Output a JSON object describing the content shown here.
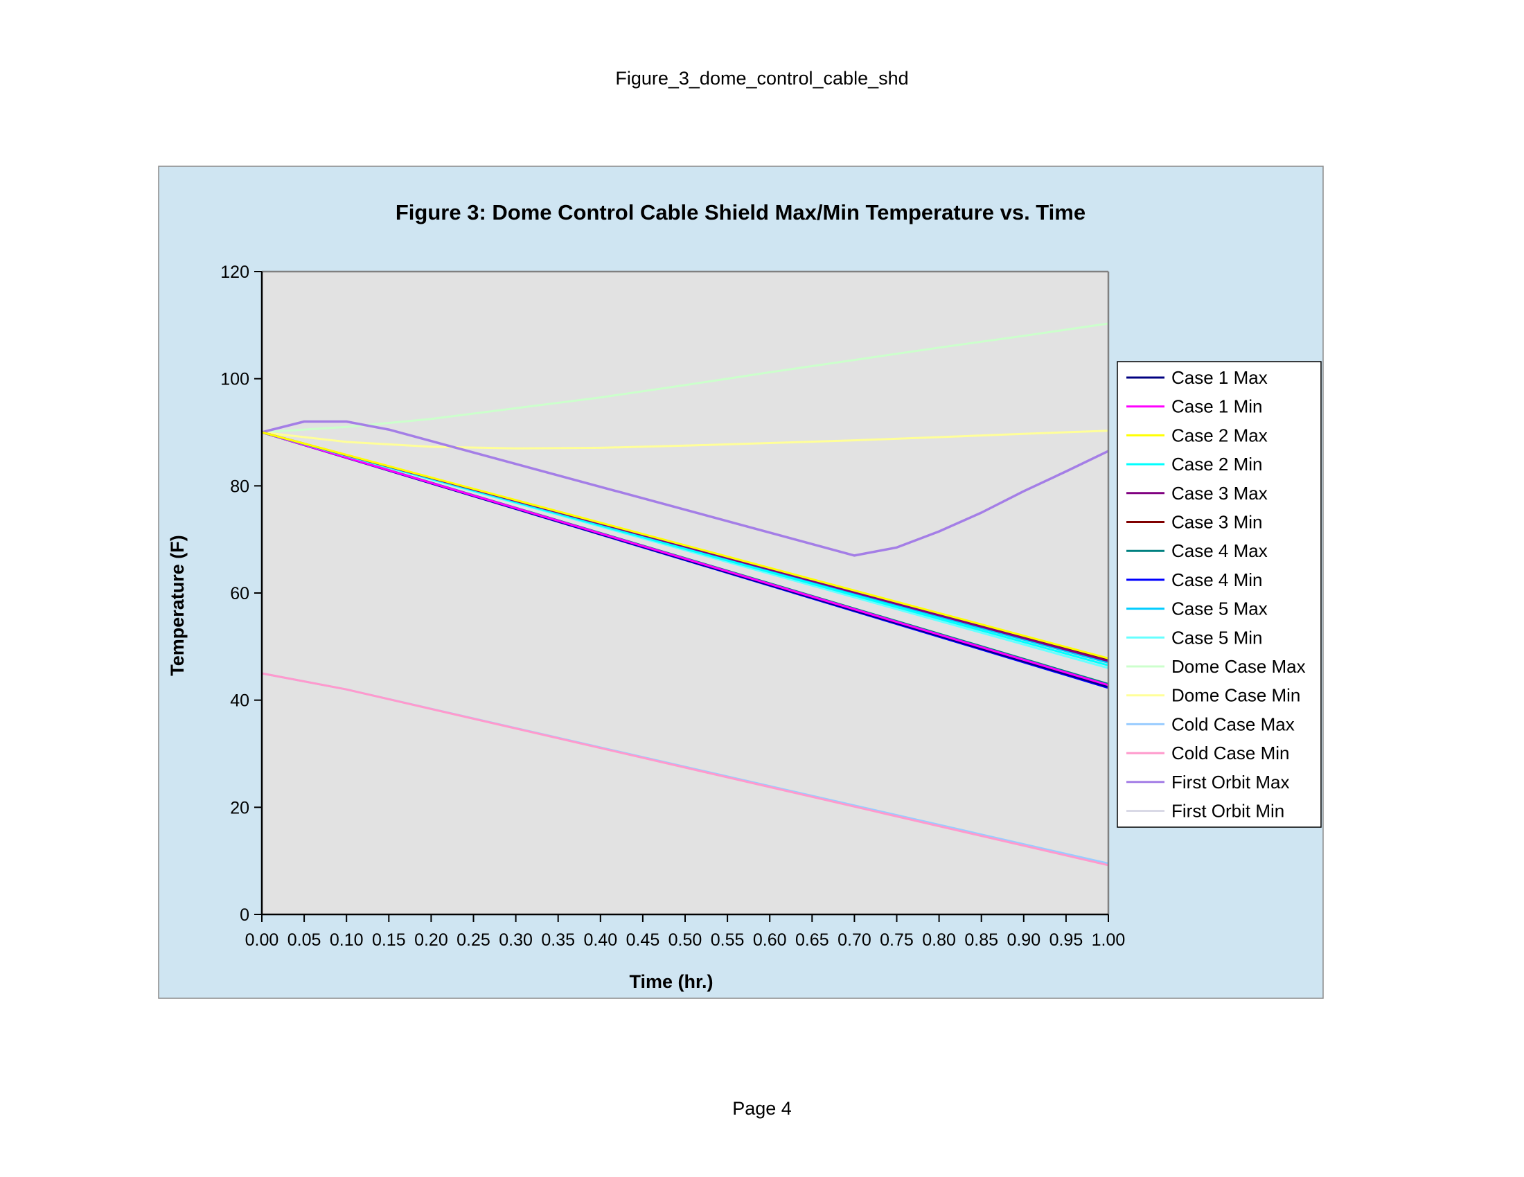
{
  "page": {
    "header": "Figure_3_dome_control_cable_shd",
    "footer": "Page 4"
  },
  "chart_data": {
    "type": "line",
    "title": "Figure 3: Dome Control Cable Shield Max/Min Temperature vs. Time",
    "xlabel": "Time (hr.)",
    "ylabel": "Temperature (F)",
    "xlim": [
      0,
      1
    ],
    "ylim": [
      0,
      120
    ],
    "x_ticks": [
      "0.00",
      "0.05",
      "0.10",
      "0.15",
      "0.20",
      "0.25",
      "0.30",
      "0.35",
      "0.40",
      "0.45",
      "0.50",
      "0.55",
      "0.60",
      "0.65",
      "0.70",
      "0.75",
      "0.80",
      "0.85",
      "0.90",
      "0.95",
      "1.00"
    ],
    "y_ticks": [
      "0",
      "20",
      "40",
      "60",
      "80",
      "100",
      "120"
    ],
    "legend_position": "right",
    "grid": false,
    "outer_background": "#cfe5f2",
    "plot_background": "#e2e2e2",
    "series": [
      {
        "name": "Case 1 Max",
        "color": "#000080",
        "width": 3,
        "x": [
          0,
          1
        ],
        "y": [
          90,
          42.5
        ]
      },
      {
        "name": "Case 1 Min",
        "color": "#ff00ff",
        "width": 3,
        "x": [
          0,
          1
        ],
        "y": [
          90,
          42.8
        ]
      },
      {
        "name": "Case 2 Max",
        "color": "#ffff00",
        "width": 3,
        "x": [
          0,
          1
        ],
        "y": [
          90,
          47.8
        ]
      },
      {
        "name": "Case 2 Min",
        "color": "#00ffff",
        "width": 3,
        "x": [
          0,
          1
        ],
        "y": [
          90,
          46.5
        ]
      },
      {
        "name": "Case 3 Max",
        "color": "#800080",
        "width": 3,
        "x": [
          0,
          1
        ],
        "y": [
          90,
          47.3
        ]
      },
      {
        "name": "Case 3 Min",
        "color": "#800000",
        "width": 3,
        "x": [
          0,
          1
        ],
        "y": [
          90,
          47.5
        ]
      },
      {
        "name": "Case 4 Max",
        "color": "#008080",
        "width": 3,
        "x": [
          0,
          1
        ],
        "y": [
          90,
          43.0
        ]
      },
      {
        "name": "Case 4 Min",
        "color": "#0000ff",
        "width": 3,
        "x": [
          0,
          1
        ],
        "y": [
          90,
          42.3
        ]
      },
      {
        "name": "Case 5 Max",
        "color": "#00ccff",
        "width": 3,
        "x": [
          0,
          1
        ],
        "y": [
          90,
          47.0
        ]
      },
      {
        "name": "Case 5 Min",
        "color": "#66ffff",
        "width": 3,
        "x": [
          0,
          1
        ],
        "y": [
          90,
          46.0
        ]
      },
      {
        "name": "Dome Case Max",
        "color": "#ccffcc",
        "width": 3,
        "x": [
          0,
          0.1,
          0.2,
          0.3,
          0.4,
          0.5,
          0.6,
          0.7,
          0.8,
          0.9,
          1.0
        ],
        "y": [
          90,
          91,
          92.5,
          94.5,
          96.5,
          98.8,
          101.2,
          103.5,
          105.8,
          108,
          110.3
        ]
      },
      {
        "name": "Dome Case Min",
        "color": "#ffff99",
        "width": 3,
        "x": [
          0,
          0.1,
          0.2,
          0.3,
          0.4,
          0.5,
          0.6,
          0.7,
          0.8,
          0.9,
          1.0
        ],
        "y": [
          90,
          88.2,
          87.3,
          87.0,
          87.1,
          87.5,
          88.0,
          88.5,
          89.1,
          89.7,
          90.3
        ]
      },
      {
        "name": "Cold Case Max",
        "color": "#99ccff",
        "width": 3,
        "x": [
          0,
          0.1,
          1.0
        ],
        "y": [
          45,
          42,
          9.5
        ]
      },
      {
        "name": "Cold Case Min",
        "color": "#ff99cc",
        "width": 3,
        "x": [
          0,
          0.1,
          1.0
        ],
        "y": [
          45,
          42,
          9.2
        ]
      },
      {
        "name": "First Orbit Max",
        "color": "#a47ee6",
        "width": 3.5,
        "x": [
          0,
          0.05,
          0.1,
          0.15,
          0.7,
          0.75,
          0.8,
          0.85,
          0.9,
          0.95,
          1.0
        ],
        "y": [
          90,
          92,
          92,
          90.5,
          67,
          68.5,
          71.5,
          75,
          79,
          82.7,
          86.5
        ]
      },
      {
        "name": "First Orbit Min",
        "color": "#d9d9e6",
        "width": 2,
        "x": [
          0,
          1
        ],
        "y": [
          90,
          47.5
        ]
      }
    ]
  }
}
